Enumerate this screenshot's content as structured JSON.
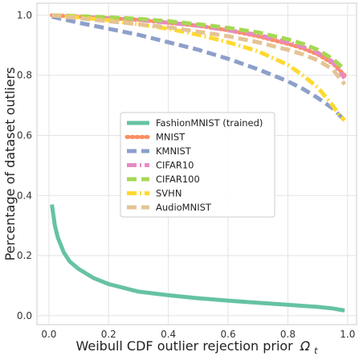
{
  "chart_data": {
    "type": "line",
    "xlabel": "Weibull CDF outlier rejection prior",
    "xlabel_symbol": "Ω",
    "xlabel_subscript": "t",
    "ylabel": "Percentage of dataset outliers",
    "xlim": [
      -0.04,
      1.03
    ],
    "ylim": [
      -0.03,
      1.04
    ],
    "xticks": [
      0.0,
      0.2,
      0.4,
      0.6,
      0.8,
      1.0
    ],
    "xtick_labels": [
      "0.0",
      "0.2",
      "0.4",
      "0.6",
      "0.8",
      "1.0"
    ],
    "yticks": [
      0.0,
      0.2,
      0.4,
      0.6,
      0.8,
      1.0
    ],
    "ytick_labels": [
      "0.0",
      "0.2",
      "0.4",
      "0.6",
      "0.8",
      "1.0"
    ],
    "grid": true,
    "legend_position": "center",
    "series": [
      {
        "name": "FashionMNIST (trained)",
        "color": "#66c2a5",
        "dash": "solid",
        "x": [
          0.01,
          0.02,
          0.03,
          0.05,
          0.07,
          0.1,
          0.15,
          0.2,
          0.3,
          0.4,
          0.5,
          0.6,
          0.7,
          0.8,
          0.9,
          0.95,
          0.99
        ],
        "y": [
          0.37,
          0.3,
          0.26,
          0.21,
          0.18,
          0.155,
          0.125,
          0.105,
          0.08,
          0.068,
          0.058,
          0.05,
          0.043,
          0.036,
          0.029,
          0.024,
          0.017
        ]
      },
      {
        "name": "MNIST",
        "color": "#fc8d62",
        "dash": "dot",
        "x": [
          0.01,
          0.1,
          0.2,
          0.3,
          0.4,
          0.5,
          0.6,
          0.7,
          0.8,
          0.85,
          0.9,
          0.95,
          0.99
        ],
        "y": [
          1.0,
          0.995,
          0.99,
          0.985,
          0.975,
          0.965,
          0.95,
          0.93,
          0.905,
          0.89,
          0.87,
          0.84,
          0.8
        ]
      },
      {
        "name": "KMNIST",
        "color": "#8da0cb",
        "dash": "dash",
        "x": [
          0.01,
          0.1,
          0.2,
          0.3,
          0.4,
          0.5,
          0.6,
          0.7,
          0.8,
          0.85,
          0.9,
          0.95,
          0.99
        ],
        "y": [
          0.995,
          0.975,
          0.955,
          0.935,
          0.91,
          0.885,
          0.855,
          0.82,
          0.78,
          0.755,
          0.725,
          0.69,
          0.65
        ]
      },
      {
        "name": "CIFAR10",
        "color": "#e78ac3",
        "dash": "dashdot",
        "x": [
          0.01,
          0.1,
          0.2,
          0.3,
          0.4,
          0.5,
          0.6,
          0.7,
          0.8,
          0.85,
          0.9,
          0.95,
          0.99
        ],
        "y": [
          1.0,
          0.995,
          0.99,
          0.985,
          0.975,
          0.965,
          0.95,
          0.935,
          0.91,
          0.895,
          0.875,
          0.845,
          0.79
        ]
      },
      {
        "name": "CIFAR100",
        "color": "#a6d854",
        "dash": "dash",
        "x": [
          0.01,
          0.1,
          0.2,
          0.3,
          0.4,
          0.5,
          0.6,
          0.7,
          0.8,
          0.85,
          0.9,
          0.95,
          0.99
        ],
        "y": [
          1.0,
          0.997,
          0.993,
          0.988,
          0.98,
          0.97,
          0.958,
          0.943,
          0.92,
          0.905,
          0.885,
          0.855,
          0.82
        ]
      },
      {
        "name": "SVHN",
        "color": "#ffd92f",
        "dash": "dashdot",
        "x": [
          0.01,
          0.1,
          0.2,
          0.3,
          0.4,
          0.5,
          0.6,
          0.7,
          0.8,
          0.85,
          0.9,
          0.95,
          0.97,
          0.99
        ],
        "y": [
          1.0,
          0.993,
          0.983,
          0.97,
          0.955,
          0.935,
          0.91,
          0.88,
          0.835,
          0.8,
          0.76,
          0.7,
          0.67,
          0.65
        ]
      },
      {
        "name": "AudioMNIST",
        "color": "#e5c494",
        "dash": "dash",
        "x": [
          0.01,
          0.1,
          0.2,
          0.3,
          0.4,
          0.5,
          0.6,
          0.7,
          0.8,
          0.85,
          0.9,
          0.95,
          0.99
        ],
        "y": [
          1.0,
          0.99,
          0.98,
          0.97,
          0.96,
          0.945,
          0.93,
          0.91,
          0.885,
          0.87,
          0.85,
          0.82,
          0.77
        ]
      }
    ]
  }
}
